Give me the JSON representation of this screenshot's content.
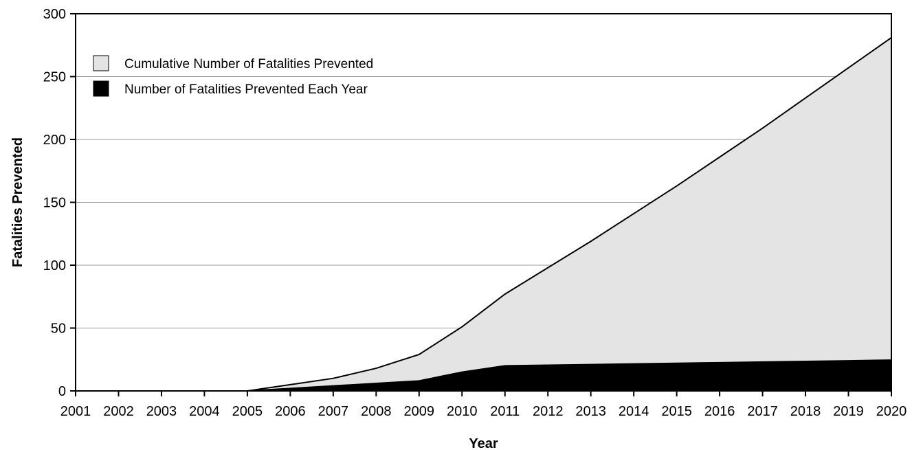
{
  "chart_data": {
    "type": "area",
    "title": "",
    "xlabel": "Year",
    "ylabel": "Fatalities Prevented",
    "x": [
      2001,
      2002,
      2003,
      2004,
      2005,
      2006,
      2007,
      2008,
      2009,
      2010,
      2011,
      2012,
      2013,
      2014,
      2015,
      2016,
      2017,
      2018,
      2019,
      2020
    ],
    "ylim": [
      0,
      300
    ],
    "yticks": [
      0,
      50,
      100,
      150,
      200,
      250,
      300
    ],
    "grid": "horizontal",
    "legend_position": "top-left",
    "series": [
      {
        "name": "Cumulative Number of Fatalities Prevented",
        "color": "#e4e4e4",
        "values": [
          0,
          0,
          0,
          0,
          0,
          5,
          10,
          18,
          29,
          51,
          77,
          98,
          119,
          141,
          163,
          186,
          209,
          233,
          257,
          281
        ]
      },
      {
        "name": "Number of Fatalities Prevented Each Year",
        "color": "#000000",
        "values": [
          0,
          0,
          0,
          0,
          0,
          2,
          4,
          6,
          8,
          15,
          20,
          20.5,
          21,
          21.5,
          22,
          22.5,
          23,
          23.5,
          24,
          24.5
        ]
      }
    ]
  }
}
